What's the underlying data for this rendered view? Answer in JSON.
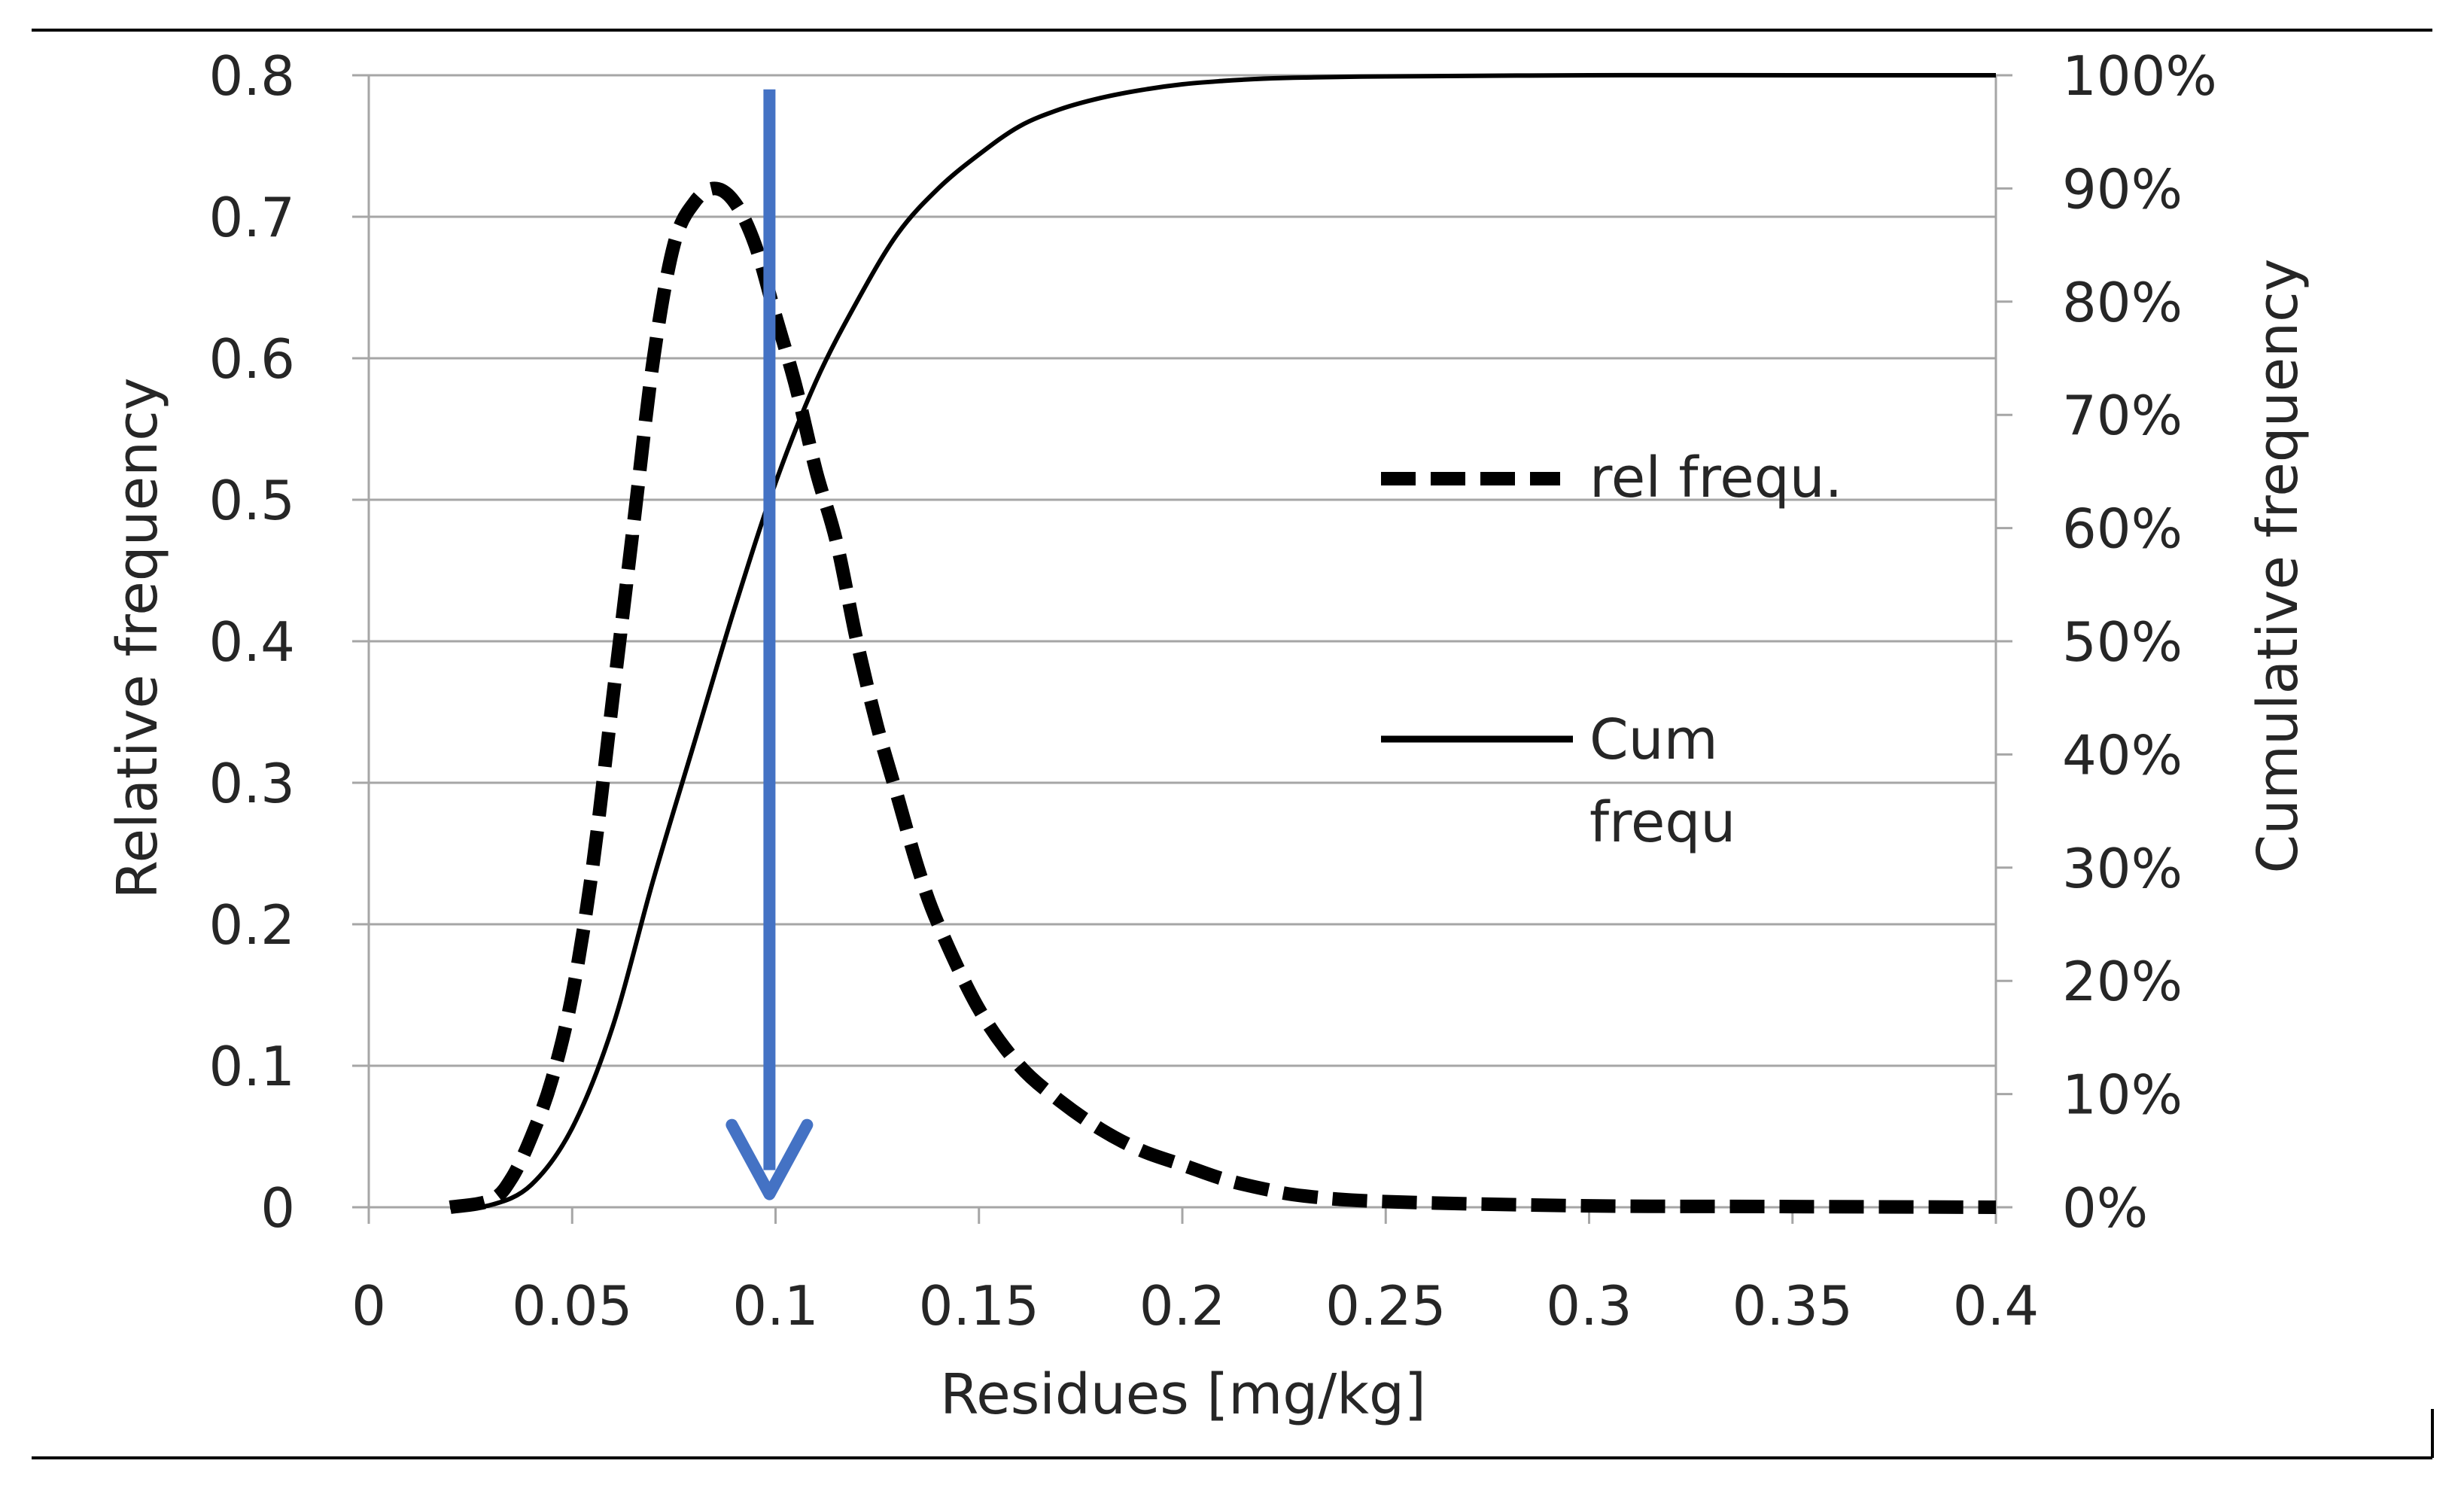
{
  "chart_data": {
    "type": "line",
    "title": "",
    "xlabel": "Residues [mg/kg]",
    "ylabel": "Relative frequency",
    "y2label": "Cumulative frequency",
    "xlim": [
      0,
      0.4
    ],
    "ylim": [
      0,
      0.8
    ],
    "y2lim": [
      0,
      1
    ],
    "grid": true,
    "legend_position": "right",
    "x_ticks": [
      "0",
      "0.05",
      "0.1",
      "0.15",
      "0.2",
      "0.25",
      "0.3",
      "0.35",
      "0.4"
    ],
    "y_ticks": [
      "0",
      "0.1",
      "0.2",
      "0.3",
      "0.4",
      "0.5",
      "0.6",
      "0.7",
      "0.8"
    ],
    "y2_ticks": [
      "0%",
      "10%",
      "20%",
      "30%",
      "40%",
      "50%",
      "60%",
      "70%",
      "80%",
      "90%",
      "100%"
    ],
    "series": [
      {
        "name": "rel frequ.",
        "axis": "left",
        "style": "dashed",
        "x": [
          0.02,
          0.03,
          0.035,
          0.04,
          0.045,
          0.05,
          0.055,
          0.06,
          0.065,
          0.07,
          0.075,
          0.08,
          0.085,
          0.09,
          0.095,
          0.1,
          0.105,
          0.11,
          0.115,
          0.12,
          0.125,
          0.13,
          0.135,
          0.14,
          0.15,
          0.16,
          0.17,
          0.18,
          0.19,
          0.2,
          0.21,
          0.22,
          0.23,
          0.25,
          0.3,
          0.35,
          0.4
        ],
        "y": [
          0,
          0.005,
          0.02,
          0.05,
          0.09,
          0.15,
          0.24,
          0.36,
          0.48,
          0.6,
          0.68,
          0.71,
          0.72,
          0.71,
          0.68,
          0.63,
          0.58,
          0.52,
          0.47,
          0.4,
          0.34,
          0.29,
          0.24,
          0.2,
          0.14,
          0.1,
          0.075,
          0.055,
          0.04,
          0.03,
          0.02,
          0.013,
          0.008,
          0.004,
          0.001,
          0.0005,
          0
        ]
      },
      {
        "name": "Cum frequ",
        "axis": "right",
        "style": "solid",
        "x": [
          0.02,
          0.03,
          0.04,
          0.05,
          0.06,
          0.07,
          0.08,
          0.09,
          0.1,
          0.11,
          0.12,
          0.13,
          0.14,
          0.15,
          0.16,
          0.17,
          0.18,
          0.19,
          0.2,
          0.21,
          0.22,
          0.23,
          0.25,
          0.3,
          0.35,
          0.4
        ],
        "y": [
          0,
          0.002,
          0.02,
          0.07,
          0.16,
          0.29,
          0.41,
          0.53,
          0.64,
          0.73,
          0.8,
          0.86,
          0.9,
          0.93,
          0.955,
          0.97,
          0.98,
          0.987,
          0.992,
          0.995,
          0.997,
          0.998,
          0.999,
          1.0,
          1.0,
          1.0
        ]
      }
    ],
    "annotations": [
      {
        "type": "arrow",
        "direction": "down",
        "x": 0.0985,
        "y_from": 0.79,
        "y_to": 0.005,
        "color": "#4472C4"
      }
    ]
  },
  "legend": {
    "rel_label": "rel frequ.",
    "cum_label_line1": "Cum",
    "cum_label_line2": "frequ"
  },
  "colors": {
    "line": "#000000",
    "grid": "#a6a6a6",
    "arrow": "#4472C4",
    "text": "#262626"
  }
}
